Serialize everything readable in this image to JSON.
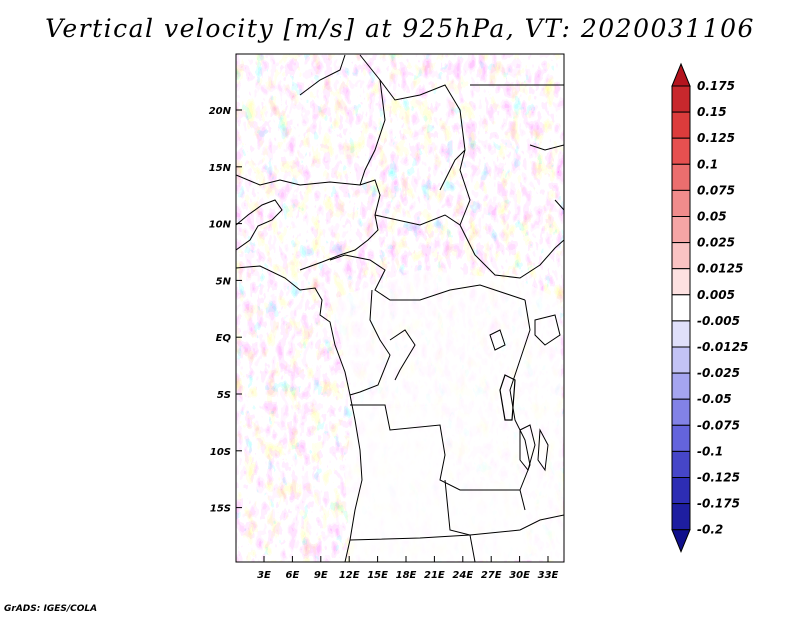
{
  "title": "Vertical velocity [m/s] at 925hPa, VT: 2020031106",
  "credit": "GrADS: IGES/COLA",
  "map": {
    "variable": "Vertical velocity",
    "units": "m/s",
    "level": "925hPa",
    "valid_time": "2020031106",
    "lat_labels": [
      "20N",
      "15N",
      "10N",
      "5N",
      "EQ",
      "5S",
      "10S",
      "15S"
    ],
    "lon_labels": [
      "3E",
      "6E",
      "9E",
      "12E",
      "15E",
      "18E",
      "21E",
      "24E",
      "27E",
      "30E",
      "33E"
    ]
  },
  "legend": {
    "levels": [
      "0.175",
      "0.15",
      "0.125",
      "0.1",
      "0.075",
      "0.05",
      "0.025",
      "0.0125",
      "0.005",
      "-0.005",
      "-0.0125",
      "-0.025",
      "-0.05",
      "-0.075",
      "-0.1",
      "-0.125",
      "-0.175",
      "-0.2"
    ],
    "colors": [
      "#b4141e",
      "#c8282d",
      "#dc3c3c",
      "#e65050",
      "#eb6e6e",
      "#f08c8c",
      "#f5a5a5",
      "#fac3c3",
      "#fde1e1",
      "#ffffff",
      "#e0e0fa",
      "#c3c3f5",
      "#a5a5f0",
      "#8282e6",
      "#6464dc",
      "#4646c8",
      "#2d2db4",
      "#1e1ea0",
      "#10108c"
    ]
  }
}
